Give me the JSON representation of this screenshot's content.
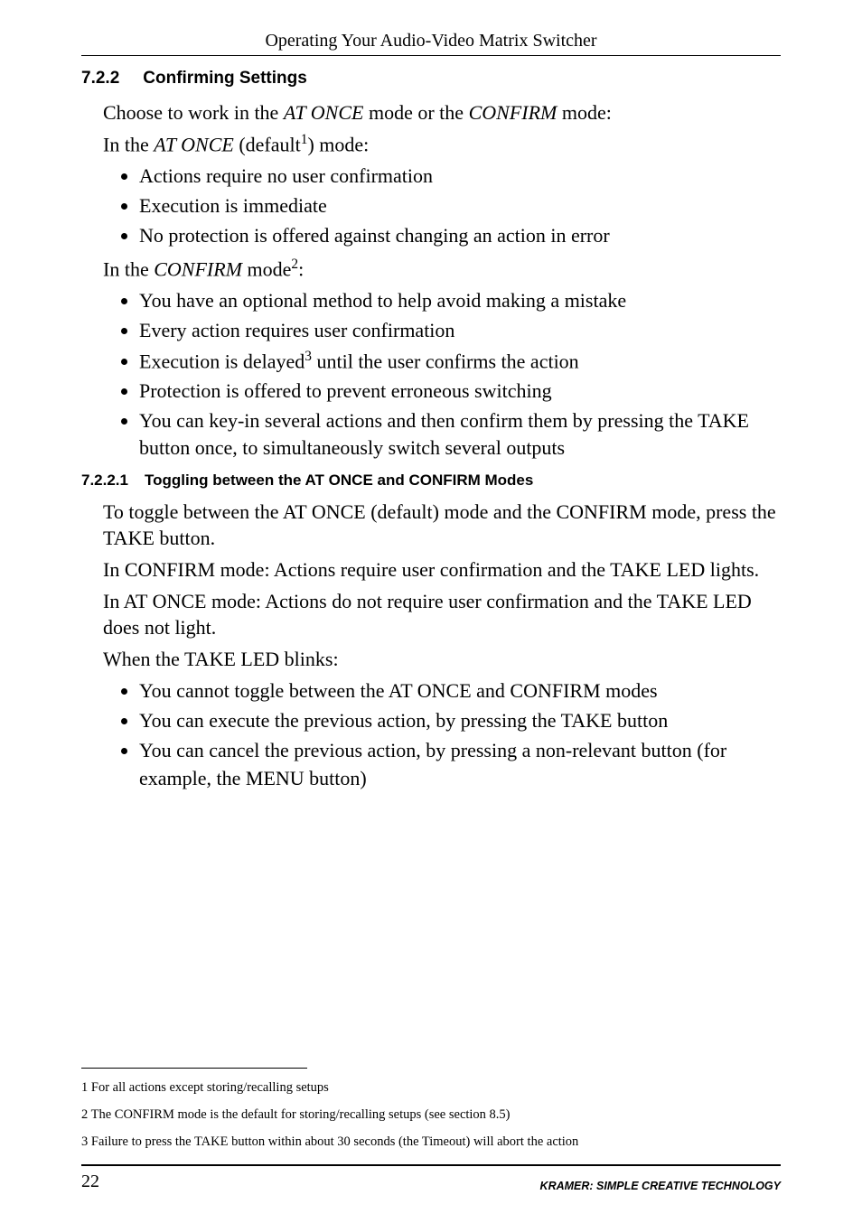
{
  "runningHead": "Operating Your Audio-Video Matrix Switcher",
  "sec1": {
    "num": "7.2.2",
    "title": "Confirming Settings"
  },
  "p1a": "Choose to work in the ",
  "p1b": "AT ONCE",
  "p1c": " mode or the ",
  "p1d": "CONFIRM",
  "p1e": " mode:",
  "p2a": "In the ",
  "p2b": "AT ONCE",
  "p2c": " (default",
  "p2sup": "1",
  "p2d": ") mode:",
  "list1": {
    "i1": "Actions require no user confirmation",
    "i2": "Execution is immediate",
    "i3": "No protection is offered against changing an action in error"
  },
  "p3a": "In the ",
  "p3b": "CONFIRM",
  "p3c": " mode",
  "p3sup": "2",
  "p3d": ":",
  "list2": {
    "i1": "You have an optional method to help avoid making a mistake",
    "i2": "Every action requires user confirmation",
    "i3a": "Execution is delayed",
    "i3sup": "3",
    "i3b": " until the user confirms the action",
    "i4": "Protection is offered to prevent erroneous switching",
    "i5": "You can key-in several actions and then confirm them by pressing the TAKE button once, to simultaneously switch several outputs"
  },
  "sec2": {
    "num": "7.2.2.1",
    "title": "Toggling between the AT ONCE and CONFIRM Modes"
  },
  "p4": "To toggle between the AT ONCE (default) mode and the CONFIRM mode, press the TAKE button.",
  "p5": "In CONFIRM mode: Actions require user confirmation and the TAKE LED lights.",
  "p6": "In AT ONCE mode: Actions do not require user confirmation and the TAKE LED does not light.",
  "p7": "When the TAKE LED blinks:",
  "list3": {
    "i1": "You cannot toggle between the AT ONCE and CONFIRM modes",
    "i2": "You can execute the previous action, by pressing the TAKE button",
    "i3": "You can cancel the previous action, by pressing a non-relevant button (for example, the MENU button)"
  },
  "fn1": "1 For all actions except storing/recalling setups",
  "fn2": "2 The CONFIRM mode is the default for storing/recalling setups (see section 8.5)",
  "fn3": "3 Failure to press the TAKE button within about 30 seconds (the Timeout) will abort the action",
  "pageNumber": "22",
  "brand": "KRAMER:  SIMPLE CREATIVE TECHNOLOGY"
}
